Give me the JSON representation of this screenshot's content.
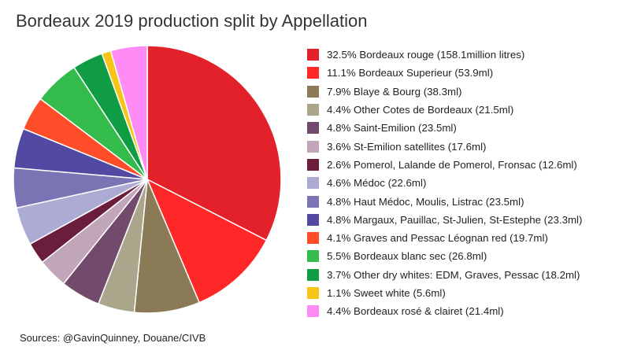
{
  "chart_data": {
    "type": "pie",
    "title": "Bordeaux 2019 production split by Appellation",
    "source": "Sources: @GavinQuinney, Douane/CIVB",
    "start_angle_deg": 0,
    "direction": "clockwise",
    "slices": [
      {
        "label": "32.5% Bordeaux rouge (158.1million litres)",
        "value": 32.5,
        "color": "#e3212b"
      },
      {
        "label": "11.1% Bordeaux Superieur (53.9ml)",
        "value": 11.1,
        "color": "#ff2727"
      },
      {
        "label": "7.9% Blaye & Bourg (38.3ml)",
        "value": 7.9,
        "color": "#8b7a56"
      },
      {
        "label": "4.4% Other Cotes de Bordeaux (21.5ml)",
        "value": 4.4,
        "color": "#aba58c"
      },
      {
        "label": "4.8% Saint-Emilion (23.5ml)",
        "value": 4.8,
        "color": "#724b6c"
      },
      {
        "label": "3.6% St-Emilion satellites (17.6ml)",
        "value": 3.6,
        "color": "#c1a5b8"
      },
      {
        "label": "2.6% Pomerol, Lalande de Pomerol, Fronsac (12.6ml)",
        "value": 2.6,
        "color": "#6b1e3c"
      },
      {
        "label": "4.6% Médoc (22.6ml)",
        "value": 4.6,
        "color": "#ababd4"
      },
      {
        "label": "4.8% Haut Médoc, Moulis, Listrac (23.5ml)",
        "value": 4.8,
        "color": "#7b74b4"
      },
      {
        "label": "4.8% Margaux, Pauillac, St-Julien, St-Estephe (23.3ml)",
        "value": 4.8,
        "color": "#524aa2"
      },
      {
        "label": "4.1% Graves and Pessac Léognan red (19.7ml)",
        "value": 4.1,
        "color": "#ff4d2a"
      },
      {
        "label": "5.5% Bordeaux blanc sec (26.8ml)",
        "value": 5.5,
        "color": "#33bb4b"
      },
      {
        "label": "3.7% Other dry whites: EDM, Graves, Pessac (18.2ml)",
        "value": 3.7,
        "color": "#0f9c45"
      },
      {
        "label": "1.1% Sweet white (5.6ml)",
        "value": 1.1,
        "color": "#f7c518"
      },
      {
        "label": "4.4% Bordeaux rosé & clairet (21.4ml)",
        "value": 4.4,
        "color": "#ff8cf5"
      }
    ]
  }
}
